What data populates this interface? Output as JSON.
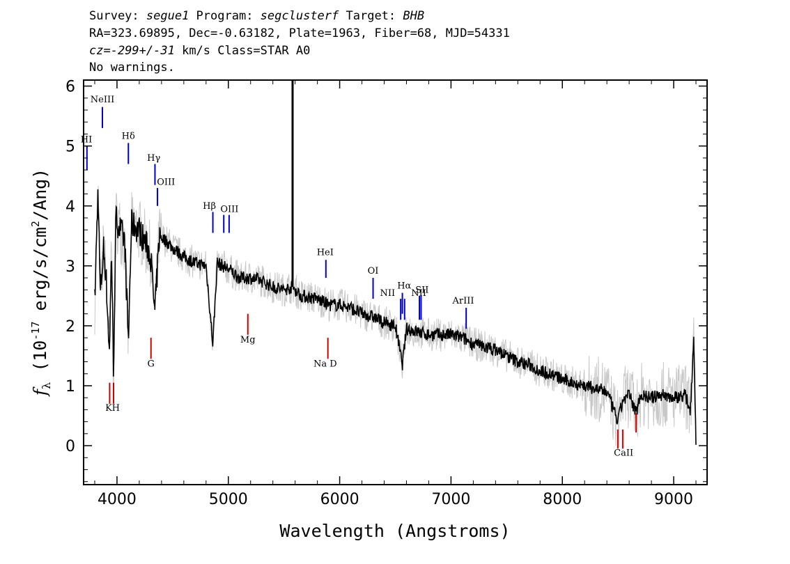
{
  "header": {
    "line1": {
      "survey_label": "Survey: ",
      "survey": "segue1",
      "program_label": " Program: ",
      "program": "segclusterf",
      "target_label": " Target: ",
      "target": "BHB"
    },
    "line2": "RA=323.69895, Dec=-0.63182, Plate=1963, Fiber=68, MJD=54331",
    "line3": {
      "cz_label": "cz=",
      "cz": "-299+/-31",
      "rest": " km/s Class=STAR A0"
    },
    "line4": "No warnings."
  },
  "chart_data": {
    "type": "line",
    "title": "",
    "xlabel": "Wavelength (Angstroms)",
    "ylabel": "f_λ (10^-17 erg/s/cm^2/Ang)",
    "xlim": [
      3700,
      9300
    ],
    "ylim": [
      -0.65,
      6.1
    ],
    "x_ticks": [
      4000,
      5000,
      6000,
      7000,
      8000,
      9000
    ],
    "y_ticks": [
      0,
      1,
      2,
      3,
      4,
      5,
      6
    ],
    "grid": false,
    "series": [
      {
        "name": "",
        "role": "smoothed spectrum",
        "color": "#000000",
        "points": [
          [
            3800,
            2.4
          ],
          [
            3830,
            4.3
          ],
          [
            3850,
            2.5
          ],
          [
            3880,
            3.3
          ],
          [
            3900,
            2.9
          ],
          [
            3933,
            1.5
          ],
          [
            3950,
            3.4
          ],
          [
            3968,
            1.2
          ],
          [
            3990,
            3.8
          ],
          [
            4030,
            3.6
          ],
          [
            4070,
            3.4
          ],
          [
            4102,
            1.7
          ],
          [
            4130,
            3.7
          ],
          [
            4200,
            3.6
          ],
          [
            4250,
            3.4
          ],
          [
            4300,
            3.2
          ],
          [
            4340,
            2.2
          ],
          [
            4380,
            3.5
          ],
          [
            4450,
            3.4
          ],
          [
            4500,
            3.3
          ],
          [
            4600,
            3.15
          ],
          [
            4700,
            3.05
          ],
          [
            4800,
            3.0
          ],
          [
            4861,
            1.7
          ],
          [
            4900,
            3.05
          ],
          [
            5000,
            2.95
          ],
          [
            5100,
            2.8
          ],
          [
            5200,
            2.8
          ],
          [
            5300,
            2.75
          ],
          [
            5400,
            2.65
          ],
          [
            5500,
            2.6
          ],
          [
            5577,
            2.65
          ],
          [
            5650,
            2.5
          ],
          [
            5800,
            2.45
          ],
          [
            5900,
            2.35
          ],
          [
            6000,
            2.35
          ],
          [
            6100,
            2.3
          ],
          [
            6200,
            2.2
          ],
          [
            6300,
            2.15
          ],
          [
            6400,
            2.05
          ],
          [
            6500,
            2.0
          ],
          [
            6563,
            1.35
          ],
          [
            6600,
            1.95
          ],
          [
            6700,
            1.9
          ],
          [
            6800,
            1.85
          ],
          [
            6900,
            1.85
          ],
          [
            7000,
            1.85
          ],
          [
            7100,
            1.8
          ],
          [
            7200,
            1.7
          ],
          [
            7300,
            1.65
          ],
          [
            7400,
            1.6
          ],
          [
            7500,
            1.5
          ],
          [
            7600,
            1.4
          ],
          [
            7700,
            1.35
          ],
          [
            7800,
            1.25
          ],
          [
            7900,
            1.2
          ],
          [
            8000,
            1.1
          ],
          [
            8100,
            1.05
          ],
          [
            8200,
            1.0
          ],
          [
            8300,
            0.95
          ],
          [
            8400,
            0.9
          ],
          [
            8498,
            0.4
          ],
          [
            8542,
            0.75
          ],
          [
            8600,
            0.85
          ],
          [
            8662,
            0.55
          ],
          [
            8700,
            0.85
          ],
          [
            8800,
            0.8
          ],
          [
            8900,
            0.85
          ],
          [
            9000,
            0.8
          ],
          [
            9100,
            0.85
          ],
          [
            9150,
            0.6
          ],
          [
            9180,
            1.8
          ],
          [
            9200,
            0.1
          ]
        ]
      },
      {
        "name": "",
        "role": "raw flux envelope",
        "color": "#c8c8c8"
      }
    ],
    "sky_line": {
      "x": 5577,
      "y_top": 6.1,
      "y_base": 2.65
    },
    "emission_lines": [
      {
        "label": "NeIII",
        "x": 3869,
        "y1": 5.3,
        "y2": 5.65,
        "lx": 3869,
        "ly": 5.73
      },
      {
        "label": "HI",
        "x": 3730,
        "y1": 4.6,
        "y2": 5.0,
        "lx": 3725,
        "ly": 5.06
      },
      {
        "label": "Hδ",
        "x": 4102,
        "y1": 4.7,
        "y2": 5.05,
        "lx": 4102,
        "ly": 5.12
      },
      {
        "label": "Hγ",
        "x": 4341,
        "y1": 4.35,
        "y2": 4.7,
        "lx": 4330,
        "ly": 4.75
      },
      {
        "label": "OIII",
        "x": 4363,
        "y1": 4.0,
        "y2": 4.3,
        "lx": 4440,
        "ly": 4.35
      },
      {
        "label": "Hβ",
        "x": 4861,
        "y1": 3.55,
        "y2": 3.9,
        "lx": 4830,
        "ly": 3.95
      },
      {
        "label": "OIII",
        "x": 4959,
        "y1": 3.55,
        "y2": 3.85,
        "lx": 5010,
        "ly": 3.9
      },
      {
        "label": "OIII",
        "x": 5007,
        "y1": 3.55,
        "y2": 3.85,
        "lx": null,
        "ly": null
      },
      {
        "label": "HeI",
        "x": 5876,
        "y1": 2.8,
        "y2": 3.1,
        "lx": 5870,
        "ly": 3.18
      },
      {
        "label": "OI",
        "x": 6300,
        "y1": 2.45,
        "y2": 2.8,
        "lx": 6300,
        "ly": 2.87
      },
      {
        "label": "NII",
        "x": 6548,
        "y1": 2.1,
        "y2": 2.45,
        "lx": 6430,
        "ly": 2.5
      },
      {
        "label": "Hα",
        "x": 6563,
        "y1": 2.2,
        "y2": 2.55,
        "lx": 6580,
        "ly": 2.62
      },
      {
        "label": "NII",
        "x": 6583,
        "y1": 2.1,
        "y2": 2.45,
        "lx": 6710,
        "ly": 2.5
      },
      {
        "label": "SII",
        "x": 6716,
        "y1": 2.1,
        "y2": 2.5,
        "lx": 6740,
        "ly": 2.55
      },
      {
        "label": "",
        "x": 6731,
        "y1": 2.1,
        "y2": 2.5,
        "lx": null,
        "ly": null
      },
      {
        "label": "ArIII",
        "x": 7136,
        "y1": 1.95,
        "y2": 2.3,
        "lx": 7110,
        "ly": 2.37
      }
    ],
    "absorption_lines": [
      {
        "label": "K",
        "x": 3934,
        "y1": 0.7,
        "y2": 1.05,
        "lx": 3925,
        "ly": 0.58
      },
      {
        "label": "H",
        "x": 3969,
        "y1": 0.7,
        "y2": 1.05,
        "lx": 3990,
        "ly": 0.58
      },
      {
        "label": "G",
        "x": 4305,
        "y1": 1.45,
        "y2": 1.8,
        "lx": 4305,
        "ly": 1.32
      },
      {
        "label": "Mg",
        "x": 5175,
        "y1": 1.85,
        "y2": 2.2,
        "lx": 5175,
        "ly": 1.72
      },
      {
        "label": "Na D",
        "x": 5894,
        "y1": 1.45,
        "y2": 1.8,
        "lx": 5870,
        "ly": 1.32
      },
      {
        "label": "CaII",
        "x": 8498,
        "y1": -0.05,
        "y2": 0.27,
        "lx": 8550,
        "ly": -0.17
      },
      {
        "label": "",
        "x": 8542,
        "y1": -0.05,
        "y2": 0.27,
        "lx": null,
        "ly": null
      },
      {
        "label": "",
        "x": 8662,
        "y1": 0.22,
        "y2": 0.54,
        "lx": null,
        "ly": null
      }
    ],
    "line_colors": {
      "emission": "#0000cc",
      "absorption": "#cc0000"
    }
  }
}
